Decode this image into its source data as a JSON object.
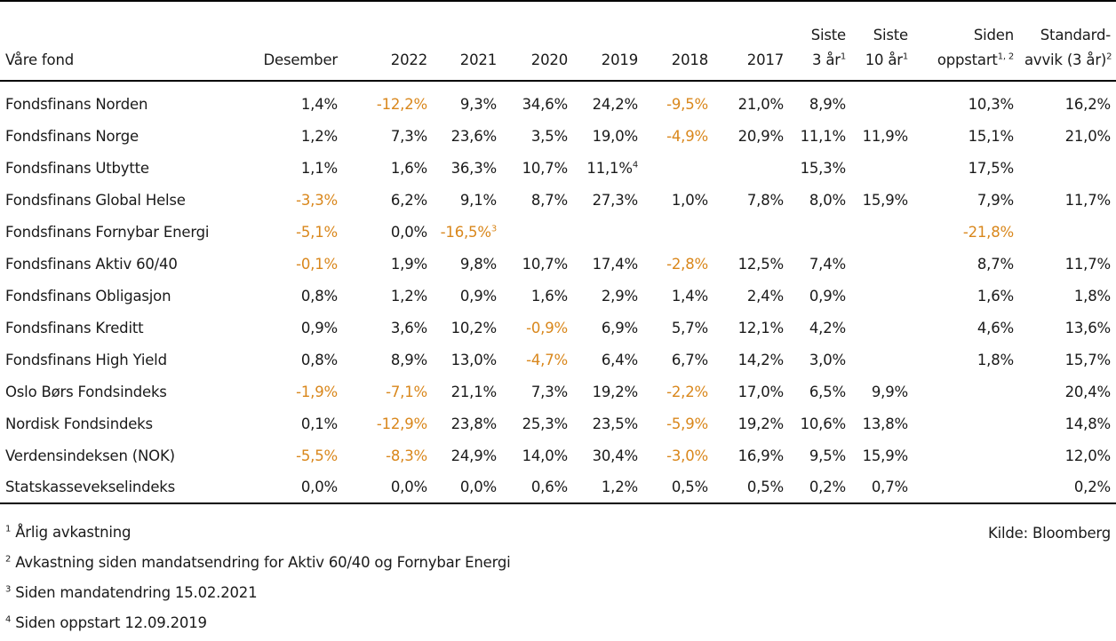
{
  "headers": {
    "fund": "Våre fond",
    "dec": "Desember",
    "y2022": "2022",
    "y2021": "2021",
    "y2020": "2020",
    "y2019": "2019",
    "y2018": "2018",
    "y2017": "2017",
    "last3_line1": "Siste",
    "last3_line2": "3 år",
    "last3_sup": "1",
    "last10_line1": "Siste",
    "last10_line2": "10 år",
    "last10_sup": "1",
    "since_line1": "Siden",
    "since_line2": "oppstart",
    "since_sup": "1, 2",
    "std_line1": "Standard-",
    "std_line2": "avvik (3 år)",
    "std_sup": "2"
  },
  "rows": [
    {
      "name": "Fondsfinans Norden",
      "cells": [
        [
          "1,4%"
        ],
        [
          "-12,2%"
        ],
        [
          "9,3%"
        ],
        [
          "34,6%"
        ],
        [
          "24,2%"
        ],
        [
          "-9,5%"
        ],
        [
          "21,0%"
        ],
        [
          "8,9%"
        ],
        [
          ""
        ],
        [
          "10,3%"
        ],
        [
          "16,2%"
        ]
      ]
    },
    {
      "name": "Fondsfinans Norge",
      "cells": [
        [
          "1,2%"
        ],
        [
          "7,3%"
        ],
        [
          "23,6%"
        ],
        [
          "3,5%"
        ],
        [
          "19,0%"
        ],
        [
          "-4,9%"
        ],
        [
          "20,9%"
        ],
        [
          "11,1%"
        ],
        [
          "11,9%"
        ],
        [
          "15,1%"
        ],
        [
          "21,0%"
        ]
      ]
    },
    {
      "name": "Fondsfinans Utbytte",
      "cells": [
        [
          "1,1%"
        ],
        [
          "1,6%"
        ],
        [
          "36,3%"
        ],
        [
          "10,7%"
        ],
        [
          "11,1%",
          "4"
        ],
        [
          ""
        ],
        [
          ""
        ],
        [
          "15,3%"
        ],
        [
          ""
        ],
        [
          "17,5%"
        ],
        [
          ""
        ]
      ]
    },
    {
      "name": "Fondsfinans Global Helse",
      "cells": [
        [
          "-3,3%"
        ],
        [
          "6,2%"
        ],
        [
          "9,1%"
        ],
        [
          "8,7%"
        ],
        [
          "27,3%"
        ],
        [
          "1,0%"
        ],
        [
          "7,8%"
        ],
        [
          "8,0%"
        ],
        [
          "15,9%"
        ],
        [
          "7,9%"
        ],
        [
          "11,7%"
        ]
      ]
    },
    {
      "name": "Fondsfinans Fornybar Energi",
      "cells": [
        [
          "-5,1%"
        ],
        [
          "0,0%"
        ],
        [
          "-16,5%",
          "3"
        ],
        [
          ""
        ],
        [
          ""
        ],
        [
          ""
        ],
        [
          ""
        ],
        [
          ""
        ],
        [
          ""
        ],
        [
          "-21,8%"
        ],
        [
          ""
        ]
      ]
    },
    {
      "name": "Fondsfinans Aktiv 60/40",
      "cells": [
        [
          "-0,1%"
        ],
        [
          "1,9%"
        ],
        [
          "9,8%"
        ],
        [
          "10,7%"
        ],
        [
          "17,4%"
        ],
        [
          "-2,8%"
        ],
        [
          "12,5%"
        ],
        [
          "7,4%"
        ],
        [
          ""
        ],
        [
          "8,7%"
        ],
        [
          "11,7%"
        ]
      ]
    },
    {
      "name": "Fondsfinans Obligasjon",
      "cells": [
        [
          "0,8%"
        ],
        [
          "1,2%"
        ],
        [
          "0,9%"
        ],
        [
          "1,6%"
        ],
        [
          "2,9%"
        ],
        [
          "1,4%"
        ],
        [
          "2,4%"
        ],
        [
          "0,9%"
        ],
        [
          ""
        ],
        [
          "1,6%"
        ],
        [
          "1,8%"
        ]
      ]
    },
    {
      "name": "Fondsfinans Kreditt",
      "cells": [
        [
          "0,9%"
        ],
        [
          "3,6%"
        ],
        [
          "10,2%"
        ],
        [
          "-0,9%"
        ],
        [
          "6,9%"
        ],
        [
          "5,7%"
        ],
        [
          "12,1%"
        ],
        [
          "4,2%"
        ],
        [
          ""
        ],
        [
          "4,6%"
        ],
        [
          "13,6%"
        ]
      ]
    },
    {
      "name": "Fondsfinans High Yield",
      "cells": [
        [
          "0,8%"
        ],
        [
          "8,9%"
        ],
        [
          "13,0%"
        ],
        [
          "-4,7%"
        ],
        [
          "6,4%"
        ],
        [
          "6,7%"
        ],
        [
          "14,2%"
        ],
        [
          "3,0%"
        ],
        [
          ""
        ],
        [
          "1,8%"
        ],
        [
          "15,7%"
        ]
      ]
    },
    {
      "name": "Oslo Børs Fondsindeks",
      "cells": [
        [
          "-1,9%"
        ],
        [
          "-7,1%"
        ],
        [
          "21,1%"
        ],
        [
          "7,3%"
        ],
        [
          "19,2%"
        ],
        [
          "-2,2%"
        ],
        [
          "17,0%"
        ],
        [
          "6,5%"
        ],
        [
          "9,9%"
        ],
        [
          ""
        ],
        [
          "20,4%"
        ]
      ]
    },
    {
      "name": "Nordisk Fondsindeks",
      "cells": [
        [
          "0,1%"
        ],
        [
          "-12,9%"
        ],
        [
          "23,8%"
        ],
        [
          "25,3%"
        ],
        [
          "23,5%"
        ],
        [
          "-5,9%"
        ],
        [
          "19,2%"
        ],
        [
          "10,6%"
        ],
        [
          "13,8%"
        ],
        [
          ""
        ],
        [
          "14,8%"
        ]
      ]
    },
    {
      "name": "Verdensindeksen (NOK)",
      "cells": [
        [
          "-5,5%"
        ],
        [
          "-8,3%"
        ],
        [
          "24,9%"
        ],
        [
          "14,0%"
        ],
        [
          "30,4%"
        ],
        [
          "-3,0%"
        ],
        [
          "16,9%"
        ],
        [
          "9,5%"
        ],
        [
          "15,9%"
        ],
        [
          ""
        ],
        [
          "12,0%"
        ]
      ]
    },
    {
      "name": "Statskassevekselindeks",
      "cells": [
        [
          "0,0%"
        ],
        [
          "0,0%"
        ],
        [
          "0,0%"
        ],
        [
          "0,6%"
        ],
        [
          "1,2%"
        ],
        [
          "0,5%"
        ],
        [
          "0,5%"
        ],
        [
          "0,2%"
        ],
        [
          "0,7%"
        ],
        [
          ""
        ],
        [
          "0,2%"
        ]
      ]
    }
  ],
  "colors": {
    "negative": "#d9871c",
    "text": "#1a1a1a",
    "rule": "#000000"
  },
  "footnotes": [
    {
      "num": "1",
      "text": "Årlig avkastning"
    },
    {
      "num": "2",
      "text": "Avkastning siden mandatsendring for Aktiv 60/40 og Fornybar Energi"
    },
    {
      "num": "3",
      "text": "Siden mandatendring 15.02.2021"
    },
    {
      "num": "4",
      "text": "Siden oppstart 12.09.2019"
    }
  ],
  "source": "Kilde: Bloomberg"
}
